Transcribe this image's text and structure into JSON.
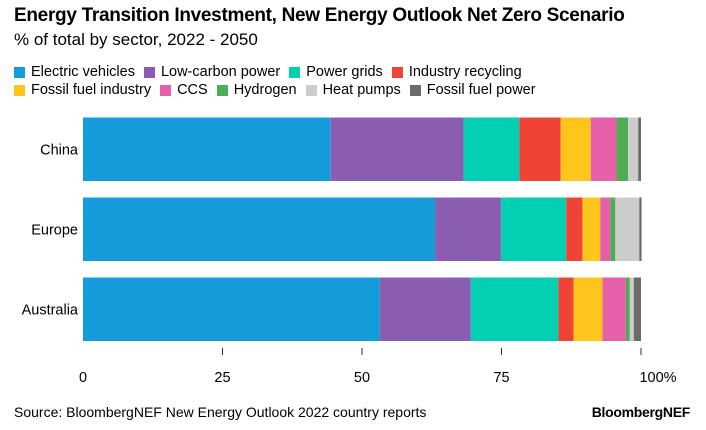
{
  "chart_data": {
    "type": "bar",
    "orientation": "horizontal",
    "stacked": true,
    "title": "Energy Transition Investment, New Energy Outlook Net Zero Scenario",
    "subtitle": "% of total by sector, 2022 - 2050",
    "xlabel": "",
    "ylabel": "",
    "xlim": [
      0,
      100
    ],
    "x_ticks": [
      "0",
      "25",
      "50",
      "75",
      "100%"
    ],
    "x_tick_values": [
      0,
      25,
      50,
      75,
      100
    ],
    "grid": false,
    "legend_position": "top",
    "categories": [
      "China",
      "Europe",
      "Australia"
    ],
    "series": [
      {
        "name": "Electric vehicles",
        "color": "#139cd9",
        "values": [
          44.4,
          63.1,
          53.2
        ]
      },
      {
        "name": "Low-carbon power",
        "color": "#8b5db2",
        "values": [
          23.8,
          11.8,
          16.3
        ]
      },
      {
        "name": "Power grids",
        "color": "#03cfb2",
        "values": [
          10.0,
          11.7,
          15.7
        ]
      },
      {
        "name": "Industry recycling",
        "color": "#ee4335",
        "values": [
          7.4,
          2.9,
          2.7
        ]
      },
      {
        "name": "Fossil fuel industry",
        "color": "#fec51b",
        "values": [
          5.4,
          3.2,
          5.2
        ]
      },
      {
        "name": "CCS",
        "color": "#e660a8",
        "values": [
          4.6,
          1.8,
          4.2
        ]
      },
      {
        "name": "Hydrogen",
        "color": "#4fad56",
        "values": [
          2.1,
          0.9,
          0.7
        ]
      },
      {
        "name": "Heat pumps",
        "color": "#cccccc",
        "values": [
          1.8,
          4.3,
          0.7
        ]
      },
      {
        "name": "Fossil fuel power",
        "color": "#6b6b6b",
        "values": [
          0.5,
          0.4,
          1.3
        ]
      }
    ]
  },
  "footer": {
    "source": "Source: BloombergNEF New Energy Outlook 2022 country reports",
    "brand": "BloombergNEF"
  }
}
